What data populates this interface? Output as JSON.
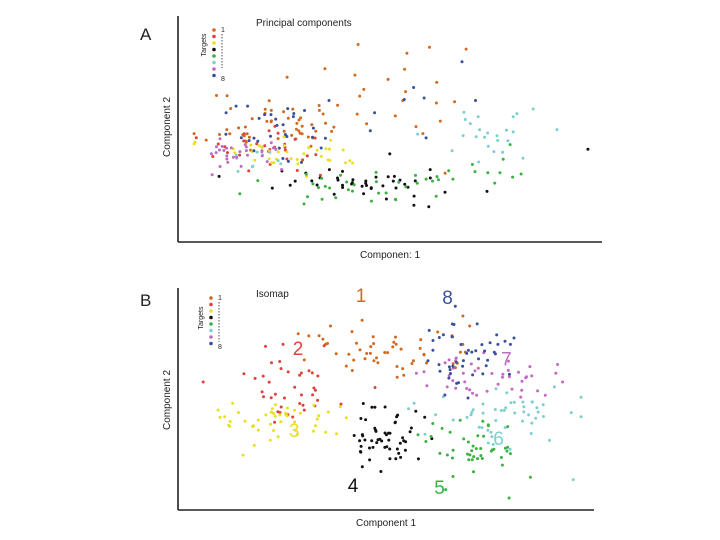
{
  "colors": {
    "1": "#d2691e",
    "2": "#e0413a",
    "3": "#e8e020",
    "4": "#111111",
    "5": "#3cb043",
    "6": "#7ecfd0",
    "7": "#c06ac0",
    "8": "#3a4f9e"
  },
  "chart_data": [
    {
      "type": "scatter",
      "panel_letter": "A",
      "title": "Principal components",
      "xlabel": "Componen: 1",
      "ylabel": "Component 2",
      "xlim": [
        0,
        100
      ],
      "ylim": [
        0,
        100
      ],
      "legend": {
        "title": "Targets",
        "labels": [
          "1",
          "8"
        ],
        "placement": "top-left"
      },
      "cluster_labels": [],
      "clusters": [
        {
          "target": "1",
          "center": [
            22,
            55
          ],
          "spread": [
            9,
            9
          ],
          "count": 55,
          "seed": 11
        },
        {
          "target": "1",
          "center": [
            55,
            70
          ],
          "spread": [
            12,
            14
          ],
          "count": 18,
          "seed": 12
        },
        {
          "target": "2",
          "center": [
            20,
            40
          ],
          "spread": [
            8,
            6
          ],
          "count": 30,
          "seed": 13
        },
        {
          "target": "3",
          "center": [
            30,
            38
          ],
          "spread": [
            12,
            4
          ],
          "count": 35,
          "seed": 14
        },
        {
          "target": "4",
          "center": [
            45,
            22
          ],
          "spread": [
            12,
            6
          ],
          "count": 45,
          "seed": 15
        },
        {
          "target": "5",
          "center": [
            42,
            18
          ],
          "spread": [
            14,
            5
          ],
          "count": 32,
          "seed": 16
        },
        {
          "target": "5",
          "center": [
            72,
            30
          ],
          "spread": [
            6,
            8
          ],
          "count": 12,
          "seed": 17
        },
        {
          "target": "6",
          "center": [
            72,
            45
          ],
          "spread": [
            7,
            10
          ],
          "count": 25,
          "seed": 18
        },
        {
          "target": "6",
          "center": [
            15,
            35
          ],
          "spread": [
            4,
            3
          ],
          "count": 10,
          "seed": 19
        },
        {
          "target": "7",
          "center": [
            12,
            38
          ],
          "spread": [
            5,
            5
          ],
          "count": 30,
          "seed": 20
        },
        {
          "target": "8",
          "center": [
            22,
            48
          ],
          "spread": [
            8,
            9
          ],
          "count": 30,
          "seed": 21
        },
        {
          "target": "8",
          "center": [
            48,
            65
          ],
          "spread": [
            10,
            10
          ],
          "count": 8,
          "seed": 22
        }
      ],
      "extra_points": [
        {
          "target": "1",
          "x": 59,
          "y": 96
        },
        {
          "target": "1",
          "x": 68,
          "y": 95
        },
        {
          "target": "8",
          "x": 67,
          "y": 88
        },
        {
          "target": "4",
          "x": 98,
          "y": 40
        }
      ]
    },
    {
      "type": "scatter",
      "panel_letter": "B",
      "title": "Isomap",
      "xlabel": "Component 1",
      "ylabel": "Component 2",
      "xlim": [
        0,
        100
      ],
      "ylim": [
        0,
        100
      ],
      "legend": {
        "title": "Targets",
        "labels": [
          "1",
          "8"
        ],
        "placement": "top-left"
      },
      "cluster_labels": [
        {
          "text": "1",
          "target": "1",
          "x": 43,
          "y": 97
        },
        {
          "text": "8",
          "target": "8",
          "x": 65,
          "y": 96
        },
        {
          "text": "2",
          "target": "2",
          "x": 27,
          "y": 71
        },
        {
          "text": "7",
          "target": "7",
          "x": 80,
          "y": 66
        },
        {
          "text": "3",
          "target": "3",
          "x": 26,
          "y": 31
        },
        {
          "text": "6",
          "target": "6",
          "x": 78,
          "y": 27
        },
        {
          "text": "4",
          "target": "4",
          "x": 41,
          "y": 4
        },
        {
          "text": "5",
          "target": "5",
          "x": 63,
          "y": 3
        }
      ],
      "clusters": [
        {
          "target": "1",
          "center": [
            48,
            73
          ],
          "spread": [
            13,
            7
          ],
          "count": 55,
          "seed": 31
        },
        {
          "target": "2",
          "center": [
            25,
            58
          ],
          "spread": [
            8,
            9
          ],
          "count": 40,
          "seed": 32
        },
        {
          "target": "3",
          "center": [
            22,
            38
          ],
          "spread": [
            8,
            5
          ],
          "count": 45,
          "seed": 33
        },
        {
          "target": "4",
          "center": [
            49,
            30
          ],
          "spread": [
            5,
            9
          ],
          "count": 55,
          "seed": 34
        },
        {
          "target": "5",
          "center": [
            72,
            25
          ],
          "spread": [
            7,
            9
          ],
          "count": 45,
          "seed": 35
        },
        {
          "target": "6",
          "center": [
            80,
            42
          ],
          "spread": [
            10,
            7
          ],
          "count": 50,
          "seed": 36
        },
        {
          "target": "7",
          "center": [
            76,
            60
          ],
          "spread": [
            8,
            5
          ],
          "count": 45,
          "seed": 37
        },
        {
          "target": "8",
          "center": [
            70,
            72
          ],
          "spread": [
            6,
            8
          ],
          "count": 45,
          "seed": 38
        }
      ],
      "extra_points": [
        {
          "target": "8",
          "x": 67,
          "y": 95
        },
        {
          "target": "3",
          "x": 13,
          "y": 22
        },
        {
          "target": "6",
          "x": 97,
          "y": 10
        }
      ]
    }
  ]
}
